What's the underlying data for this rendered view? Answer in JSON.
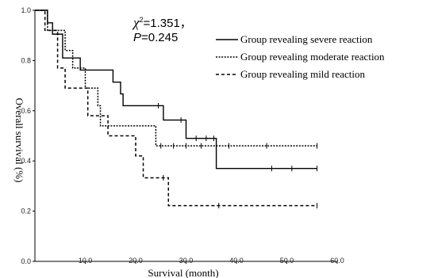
{
  "chart_data": {
    "type": "line",
    "xlabel": "Survival (month)",
    "ylabel": "Overall survival (%)",
    "xlim": [
      0,
      60
    ],
    "ylim": [
      0,
      1.0
    ],
    "x_ticks": [
      {
        "value": 10,
        "label": "10.0"
      },
      {
        "value": 20,
        "label": "20.0"
      },
      {
        "value": 30,
        "label": "30.0"
      },
      {
        "value": 40,
        "label": "40.0"
      },
      {
        "value": 50,
        "label": "50.0"
      },
      {
        "value": 60,
        "label": "60.0"
      }
    ],
    "y_ticks": [
      {
        "value": 0.0,
        "label": "0.0"
      },
      {
        "value": 0.2,
        "label": "0.2"
      },
      {
        "value": 0.4,
        "label": "0.4"
      },
      {
        "value": 0.6,
        "label": "0.6"
      },
      {
        "value": 0.8,
        "label": "0.8"
      },
      {
        "value": 1.0,
        "label": "1.0"
      }
    ],
    "grid": false,
    "legend_position": "top-right",
    "annotation": {
      "stat_symbol": "χ",
      "stat_sup": "2",
      "stat_value": "=1.351，",
      "p_symbol": "P",
      "p_value": "=0.245"
    },
    "series": [
      {
        "name": "Group revealing severe reaction",
        "style": "solid",
        "color": "#000000",
        "steps": [
          [
            0,
            1.0
          ],
          [
            2.5,
            0.95
          ],
          [
            3.5,
            0.905
          ],
          [
            5.5,
            0.81
          ],
          [
            9,
            0.762
          ],
          [
            15.5,
            0.714
          ],
          [
            17,
            0.667
          ],
          [
            17.5,
            0.62
          ],
          [
            25.5,
            0.563
          ],
          [
            30,
            0.49
          ],
          [
            36,
            0.37
          ],
          [
            56,
            0.37
          ]
        ],
        "censors": [
          [
            24.5,
            0.62
          ],
          [
            29,
            0.563
          ],
          [
            32,
            0.49
          ],
          [
            34,
            0.49
          ],
          [
            35.5,
            0.49
          ],
          [
            47,
            0.37
          ],
          [
            51,
            0.37
          ],
          [
            56,
            0.37
          ]
        ]
      },
      {
        "name": "Group revealing moderate reaction",
        "style": "dotted",
        "color": "#000000",
        "steps": [
          [
            0,
            1.0
          ],
          [
            2.5,
            0.92
          ],
          [
            6,
            0.84
          ],
          [
            7.5,
            0.77
          ],
          [
            10,
            0.69
          ],
          [
            12.5,
            0.62
          ],
          [
            13,
            0.54
          ],
          [
            24,
            0.46
          ],
          [
            56,
            0.46
          ]
        ],
        "censors": [
          [
            25,
            0.46
          ],
          [
            27.5,
            0.46
          ],
          [
            30,
            0.46
          ],
          [
            33,
            0.46
          ],
          [
            38.5,
            0.46
          ],
          [
            46,
            0.46
          ],
          [
            56,
            0.46
          ]
        ]
      },
      {
        "name": "Group revealing mild reaction",
        "style": "dashed",
        "color": "#000000",
        "steps": [
          [
            0,
            1.0
          ],
          [
            2,
            0.92
          ],
          [
            4.5,
            0.77
          ],
          [
            6,
            0.69
          ],
          [
            10.5,
            0.58
          ],
          [
            14.5,
            0.5
          ],
          [
            20,
            0.42
          ],
          [
            21.5,
            0.333
          ],
          [
            26.5,
            0.222
          ],
          [
            56,
            0.222
          ]
        ],
        "censors": [
          [
            25.5,
            0.333
          ],
          [
            36.5,
            0.222
          ],
          [
            56,
            0.222
          ]
        ]
      }
    ]
  }
}
